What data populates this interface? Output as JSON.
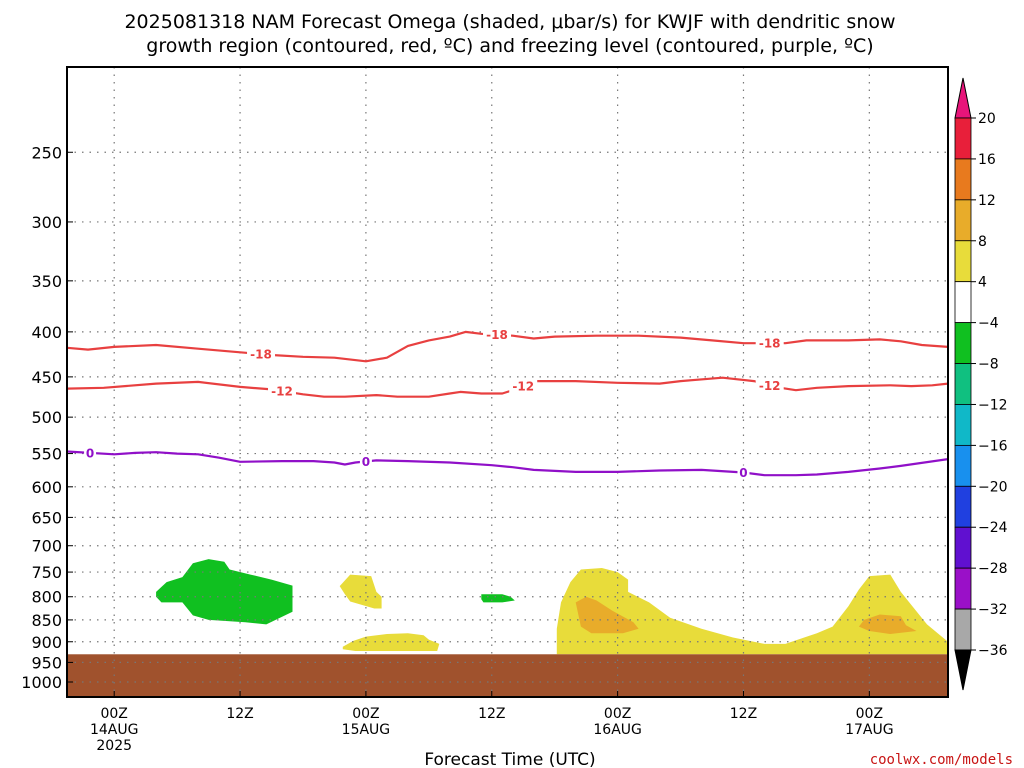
{
  "title_line1": "2025081318 NAM Forecast Omega (shaded, μbar/s) for KWJF with dendritic snow",
  "title_line2": "growth region (contoured, red, ºC) and freezing level (contoured, purple, ºC)",
  "credit": "coolwx.com/models",
  "colors": {
    "temp_contour": "#e84040",
    "freezing_contour": "#9010c8",
    "terrain": "#a0522d",
    "grid": "#777777"
  },
  "chart_data": {
    "type": "heatmap",
    "xlabel": "Forecast Time (UTC)",
    "y_scale": "log",
    "y_inverted": true,
    "y_unit": "hPa",
    "x_range_hours": [
      -4.5,
      79.5
    ],
    "y_range_hpa": [
      200,
      1040
    ],
    "y_ticks": [
      250,
      300,
      350,
      400,
      450,
      500,
      550,
      600,
      650,
      700,
      750,
      800,
      850,
      900,
      950,
      1000
    ],
    "x_ticks": [
      {
        "hour": 0,
        "line1": "00Z",
        "line2": "14AUG",
        "line3": "2025"
      },
      {
        "hour": 12,
        "line1": "12Z",
        "line2": "",
        "line3": ""
      },
      {
        "hour": 24,
        "line1": "00Z",
        "line2": "15AUG",
        "line3": ""
      },
      {
        "hour": 36,
        "line1": "12Z",
        "line2": "",
        "line3": ""
      },
      {
        "hour": 48,
        "line1": "00Z",
        "line2": "16AUG",
        "line3": ""
      },
      {
        "hour": 60,
        "line1": "12Z",
        "line2": "",
        "line3": ""
      },
      {
        "hour": 72,
        "line1": "00Z",
        "line2": "17AUG",
        "line3": ""
      }
    ],
    "grid": true,
    "terrain_top_hpa": 930,
    "colorbar": {
      "labels": [
        20,
        16,
        12,
        8,
        4,
        -4,
        -8,
        -12,
        -16,
        -20,
        -24,
        -28,
        -32,
        -36
      ],
      "colors": [
        "#e81f3a",
        "#e87a1e",
        "#e8ac2a",
        "#e8dc3a",
        "#ffffff",
        "#10c020",
        "#10c080",
        "#10b8c8",
        "#1890ee",
        "#2040e0",
        "#6010d0",
        "#9a10c8",
        "#a8a8a8"
      ],
      "top_cap_color": "#e8157a",
      "bottom_cap_color": "#000000"
    },
    "contours": [
      {
        "kind": "temp",
        "level": -18,
        "label": "-18",
        "label_hours": [
          14,
          36.5,
          62.5
        ],
        "points": [
          [
            -4.5,
            417
          ],
          [
            -2.5,
            419
          ],
          [
            0,
            416
          ],
          [
            4,
            414
          ],
          [
            8,
            418
          ],
          [
            12,
            422
          ],
          [
            15,
            425
          ],
          [
            18,
            427
          ],
          [
            21,
            428
          ],
          [
            24,
            432
          ],
          [
            26,
            428
          ],
          [
            28,
            415
          ],
          [
            30,
            409
          ],
          [
            32,
            405
          ],
          [
            33.5,
            400
          ],
          [
            35,
            402
          ],
          [
            38,
            404
          ],
          [
            40,
            407
          ],
          [
            42,
            405
          ],
          [
            46,
            404
          ],
          [
            50,
            404
          ],
          [
            54,
            406
          ],
          [
            57,
            409
          ],
          [
            60,
            412
          ],
          [
            64,
            412
          ],
          [
            66,
            409
          ],
          [
            70,
            409
          ],
          [
            73,
            408
          ],
          [
            75,
            410
          ],
          [
            77,
            414
          ],
          [
            79.5,
            416
          ]
        ]
      },
      {
        "kind": "temp",
        "level": -12,
        "label": "-12",
        "label_hours": [
          16,
          39,
          62.5
        ],
        "points": [
          [
            -4.5,
            464
          ],
          [
            -1,
            463
          ],
          [
            4,
            458
          ],
          [
            8,
            456
          ],
          [
            12,
            462
          ],
          [
            15,
            465
          ],
          [
            18,
            471
          ],
          [
            20,
            474
          ],
          [
            22,
            474
          ],
          [
            25,
            472
          ],
          [
            27,
            474
          ],
          [
            30,
            474
          ],
          [
            32,
            470
          ],
          [
            33,
            468
          ],
          [
            35,
            470
          ],
          [
            37,
            470
          ],
          [
            38.5,
            464
          ],
          [
            40,
            455
          ],
          [
            44,
            455
          ],
          [
            48,
            457
          ],
          [
            52,
            458
          ],
          [
            54,
            455
          ],
          [
            58,
            451
          ],
          [
            61,
            455
          ],
          [
            63,
            462
          ],
          [
            65,
            466
          ],
          [
            67,
            463
          ],
          [
            70,
            461
          ],
          [
            74,
            460
          ],
          [
            76,
            461
          ],
          [
            78,
            460
          ],
          [
            79.5,
            458
          ]
        ]
      },
      {
        "kind": "freezing",
        "level": 0,
        "label": "0",
        "label_hours": [
          -2.3,
          24,
          60
        ],
        "points": [
          [
            -4.5,
            547
          ],
          [
            0,
            551
          ],
          [
            2,
            549
          ],
          [
            4,
            548
          ],
          [
            6,
            550
          ],
          [
            8,
            551
          ],
          [
            10,
            556
          ],
          [
            12,
            562
          ],
          [
            16,
            561
          ],
          [
            19,
            561
          ],
          [
            21,
            563
          ],
          [
            22,
            566
          ],
          [
            23,
            563
          ],
          [
            25,
            560
          ],
          [
            28,
            561
          ],
          [
            32,
            563
          ],
          [
            36,
            567
          ],
          [
            38,
            570
          ],
          [
            40,
            574
          ],
          [
            44,
            577
          ],
          [
            48,
            577
          ],
          [
            52,
            575
          ],
          [
            56,
            574
          ],
          [
            60,
            578
          ],
          [
            62,
            582
          ],
          [
            65,
            582
          ],
          [
            67,
            581
          ],
          [
            70,
            577
          ],
          [
            73,
            572
          ],
          [
            75,
            568
          ],
          [
            79.5,
            558
          ]
        ]
      }
    ],
    "shaded_regions": [
      {
        "omega": "-8 to -4",
        "color": "#10c020",
        "points": [
          [
            4,
            790
          ],
          [
            5,
            770
          ],
          [
            6.5,
            760
          ],
          [
            7.5,
            733
          ],
          [
            9,
            725
          ],
          [
            10.5,
            730
          ],
          [
            11,
            745
          ],
          [
            13,
            755
          ],
          [
            15,
            765
          ],
          [
            17,
            777
          ],
          [
            17,
            832
          ],
          [
            14.5,
            860
          ],
          [
            12.5,
            855
          ],
          [
            9,
            850
          ],
          [
            7.5,
            840
          ],
          [
            6.5,
            812
          ],
          [
            4.5,
            812
          ],
          [
            4,
            800
          ]
        ]
      },
      {
        "omega": "-8 to -4",
        "color": "#10c020",
        "points": [
          [
            35,
            795
          ],
          [
            37,
            795
          ],
          [
            37.8,
            800
          ],
          [
            38.2,
            808
          ],
          [
            37,
            812
          ],
          [
            35.2,
            812
          ],
          [
            35,
            805
          ]
        ]
      },
      {
        "omega": "4 to 8",
        "color": "#e8dc3a",
        "points": [
          [
            21.5,
            778
          ],
          [
            22.5,
            755
          ],
          [
            24.5,
            758
          ],
          [
            25,
            790
          ],
          [
            25.5,
            800
          ],
          [
            25.5,
            825
          ],
          [
            24.8,
            825
          ],
          [
            22.5,
            810
          ],
          [
            22,
            795
          ]
        ]
      },
      {
        "omega": "4 to 8",
        "color": "#e8dc3a",
        "points": [
          [
            21.8,
            912
          ],
          [
            22.8,
            898
          ],
          [
            24,
            888
          ],
          [
            26,
            882
          ],
          [
            28,
            880
          ],
          [
            29.5,
            885
          ],
          [
            30,
            895
          ],
          [
            31,
            905
          ],
          [
            30.8,
            922
          ],
          [
            23,
            922
          ],
          [
            21.8,
            918
          ]
        ]
      },
      {
        "omega": "4 to 8",
        "color": "#e8dc3a",
        "points": [
          [
            42.2,
            870
          ],
          [
            42.6,
            812
          ],
          [
            43.5,
            770
          ],
          [
            44.5,
            745
          ],
          [
            46.5,
            742
          ],
          [
            48,
            750
          ],
          [
            49,
            765
          ],
          [
            49,
            790
          ],
          [
            51,
            812
          ],
          [
            53,
            845
          ],
          [
            56,
            870
          ],
          [
            59,
            890
          ],
          [
            62,
            905
          ],
          [
            64,
            905
          ],
          [
            67,
            880
          ],
          [
            68.5,
            865
          ],
          [
            70,
            820
          ],
          [
            71,
            785
          ],
          [
            72,
            758
          ],
          [
            74,
            755
          ],
          [
            75,
            790
          ],
          [
            77.5,
            860
          ],
          [
            79.5,
            900
          ],
          [
            79.5,
            930
          ],
          [
            42.2,
            930
          ]
        ]
      },
      {
        "omega": "8 to 12",
        "color": "#e8ac2a",
        "points": [
          [
            44,
            812
          ],
          [
            45,
            800
          ],
          [
            46,
            808
          ],
          [
            47.5,
            830
          ],
          [
            49.5,
            855
          ],
          [
            50,
            870
          ],
          [
            48.5,
            880
          ],
          [
            45.5,
            880
          ],
          [
            44.5,
            865
          ]
        ]
      },
      {
        "omega": "8 to 12",
        "color": "#e8ac2a",
        "points": [
          [
            71,
            865
          ],
          [
            71.5,
            850
          ],
          [
            73,
            838
          ],
          [
            75,
            842
          ],
          [
            75.5,
            862
          ],
          [
            76.5,
            875
          ],
          [
            74,
            882
          ],
          [
            72,
            875
          ]
        ]
      }
    ]
  }
}
